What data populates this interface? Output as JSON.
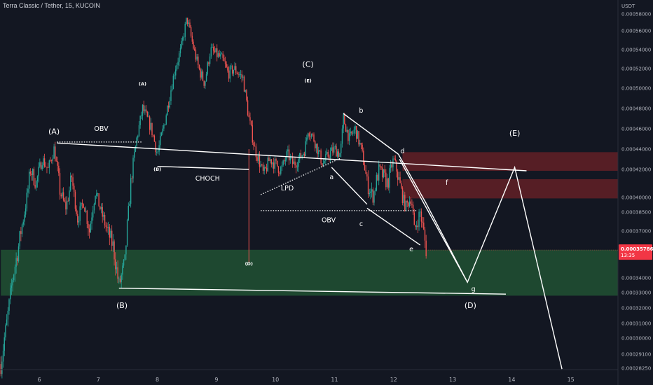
{
  "header": {
    "title": "Terra Classic / Tether, 15, KUCOIN"
  },
  "chart_data": {
    "type": "candlestick",
    "symbol": "Terra Classic / Tether",
    "interval": "15",
    "exchange": "KUCOIN",
    "quote_currency": "USDT",
    "x_ticks": [
      "6",
      "7",
      "8",
      "9",
      "10",
      "11",
      "12",
      "13",
      "14",
      "15"
    ],
    "y_ticks": [
      "0.00058000",
      "0.00056000",
      "0.00054000",
      "0.00052000",
      "0.00050000",
      "0.00048000",
      "0.00046000",
      "0.00044000",
      "0.00042000",
      "0.00040000",
      "0.00038500",
      "0.00037000",
      "0.00034000",
      "0.00033000",
      "0.00032000",
      "0.00031000",
      "0.00030000",
      "0.00029100",
      "0.00028250"
    ],
    "last_price": "0.00035786",
    "countdown": "13:35",
    "path": [
      [
        5.35,
        0.000285
      ],
      [
        5.45,
        0.00031
      ],
      [
        5.55,
        0.00034
      ],
      [
        5.65,
        0.00036
      ],
      [
        5.75,
        0.000385
      ],
      [
        5.85,
        0.00042
      ],
      [
        5.95,
        0.00041
      ],
      [
        6.05,
        0.00043
      ],
      [
        6.15,
        0.00042
      ],
      [
        6.25,
        0.00044
      ],
      [
        6.35,
        0.000405
      ],
      [
        6.45,
        0.00039
      ],
      [
        6.55,
        0.000415
      ],
      [
        6.65,
        0.00038
      ],
      [
        6.75,
        0.000395
      ],
      [
        6.85,
        0.00037
      ],
      [
        6.95,
        0.000405
      ],
      [
        7.05,
        0.000385
      ],
      [
        7.15,
        0.0003705
      ],
      [
        7.25,
        0.0003605
      ],
      [
        7.35,
        0.000335
      ],
      [
        7.45,
        0.00035
      ],
      [
        7.55,
        0.00041
      ],
      [
        7.65,
        0.00045
      ],
      [
        7.75,
        0.00048
      ],
      [
        7.9,
        0.00046
      ],
      [
        8.0,
        0.000435
      ],
      [
        8.1,
        0.00046
      ],
      [
        8.2,
        0.00049
      ],
      [
        8.3,
        0.00052
      ],
      [
        8.4,
        0.00054
      ],
      [
        8.5,
        0.000575
      ],
      [
        8.6,
        0.000545
      ],
      [
        8.7,
        0.00052
      ],
      [
        8.8,
        0.000505
      ],
      [
        8.9,
        0.00054
      ],
      [
        9.0,
        0.000535
      ],
      [
        9.1,
        0.00053
      ],
      [
        9.2,
        0.000515
      ],
      [
        9.3,
        0.00052
      ],
      [
        9.45,
        0.00051
      ],
      [
        9.55,
        0.00047
      ],
      [
        9.65,
        0.00044
      ],
      [
        9.8,
        0.000415
      ],
      [
        9.9,
        0.00043
      ],
      [
        10.0,
        0.000425
      ],
      [
        10.1,
        0.00042
      ],
      [
        10.2,
        0.000435
      ],
      [
        10.3,
        0.000425
      ],
      [
        10.4,
        0.00043
      ],
      [
        10.5,
        0.00044
      ],
      [
        10.55,
        0.00046
      ],
      [
        10.65,
        0.00045
      ],
      [
        10.8,
        0.000425
      ],
      [
        10.9,
        0.000435
      ],
      [
        11.0,
        0.00044
      ],
      [
        11.1,
        0.000435
      ],
      [
        11.15,
        0.00047
      ],
      [
        11.25,
        0.00045
      ],
      [
        11.35,
        0.00046
      ],
      [
        11.45,
        0.00044
      ],
      [
        11.55,
        0.00041
      ],
      [
        11.65,
        0.0004
      ],
      [
        11.75,
        0.00042
      ],
      [
        11.9,
        0.00041
      ],
      [
        12.0,
        0.00043
      ],
      [
        12.1,
        0.00041
      ],
      [
        12.2,
        0.00039
      ],
      [
        12.3,
        0.0004
      ],
      [
        12.35,
        0.00037
      ],
      [
        12.45,
        0.000385
      ],
      [
        12.55,
        0.000358
      ]
    ],
    "wick_spikes": [
      {
        "x": 9.55,
        "low": 0.00035
      }
    ],
    "zones": [
      {
        "name": "demand-zone",
        "y_top": 0.000358,
        "y_bottom": 0.000328,
        "x_from": 5.35,
        "color": "#1f4b32"
      },
      {
        "name": "supply-zone-upper",
        "y_top": 0.000437,
        "y_bottom": 0.000419,
        "x_from": 12.15,
        "color": "#5a1f26"
      },
      {
        "name": "supply-zone-lower",
        "y_top": 0.000413,
        "y_bottom": 0.000399,
        "x_from": 12.15,
        "color": "#5a1f26"
      }
    ],
    "lines": [
      {
        "name": "neckline",
        "points": [
          [
            6.3,
            0.000446
          ],
          [
            14.25,
            0.000419
          ]
        ]
      },
      {
        "name": "choch-top",
        "points": [
          [
            8.0,
            0.000423
          ],
          [
            9.55,
            0.00042
          ]
        ]
      },
      {
        "name": "b-base",
        "points": [
          [
            7.35,
            0.000333
          ],
          [
            13.9,
            0.000329
          ]
        ]
      },
      {
        "name": "wedge-upper",
        "points": [
          [
            11.15,
            0.000475
          ],
          [
            12.08,
            0.000435
          ]
        ]
      },
      {
        "name": "wedge-inner-a",
        "points": [
          [
            10.95,
            0.000422
          ],
          [
            11.55,
            0.000393
          ]
        ]
      },
      {
        "name": "wedge-lower",
        "points": [
          [
            11.55,
            0.000389
          ],
          [
            12.45,
            0.000361
          ]
        ]
      },
      {
        "name": "wedge-right",
        "points": [
          [
            12.08,
            0.000435
          ],
          [
            12.55,
            0.000394
          ]
        ]
      },
      {
        "name": "projection",
        "points": [
          [
            12.1,
            0.00043
          ],
          [
            13.25,
            0.000337
          ],
          [
            14.05,
            0.000422
          ],
          [
            14.85,
            0.000282
          ]
        ]
      },
      {
        "name": "projection-fall",
        "points": [
          [
            12.55,
            0.000394
          ],
          [
            13.25,
            0.000337
          ]
        ]
      }
    ],
    "dotted_lines": [
      {
        "name": "obv-upper",
        "points": [
          [
            6.3,
            0.000447
          ],
          [
            7.75,
            0.000447
          ]
        ]
      },
      {
        "name": "lpd-trend",
        "points": [
          [
            9.75,
            0.000402
          ],
          [
            11.1,
            0.000431
          ]
        ]
      },
      {
        "name": "obv-lower",
        "points": [
          [
            9.75,
            0.0003865
          ],
          [
            12.4,
            0.0003865
          ]
        ]
      }
    ],
    "annotations": [
      {
        "text": "(A)",
        "x": 6.25,
        "y": 0.000455,
        "size": "large"
      },
      {
        "text": "OBV",
        "x": 7.05,
        "y": 0.000458,
        "size": "medium"
      },
      {
        "text": "(A)",
        "x": 7.75,
        "y": 0.000503,
        "size": "small"
      },
      {
        "text": "(B)",
        "x": 8.0,
        "y": 0.000419,
        "size": "small"
      },
      {
        "text": "CHOCH",
        "x": 8.85,
        "y": 0.000412,
        "size": "medium"
      },
      {
        "text": "(B)",
        "x": 7.4,
        "y": 0.00032,
        "size": "large"
      },
      {
        "text": "(D)",
        "x": 9.55,
        "y": 0.000348,
        "size": "small"
      },
      {
        "text": "(C)",
        "x": 10.55,
        "y": 0.000522,
        "size": "large"
      },
      {
        "text": "(E)",
        "x": 10.55,
        "y": 0.000506,
        "size": "small"
      },
      {
        "text": "LPD",
        "x": 10.2,
        "y": 0.000405,
        "size": "medium"
      },
      {
        "text": "a",
        "x": 10.95,
        "y": 0.000413,
        "size": "medium"
      },
      {
        "text": "b",
        "x": 11.45,
        "y": 0.000476,
        "size": "medium"
      },
      {
        "text": "OBV",
        "x": 10.9,
        "y": 0.000377,
        "size": "medium"
      },
      {
        "text": "c",
        "x": 11.45,
        "y": 0.000374,
        "size": "medium"
      },
      {
        "text": "d",
        "x": 12.15,
        "y": 0.000436,
        "size": "medium"
      },
      {
        "text": "e",
        "x": 12.3,
        "y": 0.000357,
        "size": "medium"
      },
      {
        "text": "f",
        "x": 12.9,
        "y": 0.000409,
        "size": "medium"
      },
      {
        "text": "g",
        "x": 13.35,
        "y": 0.000331,
        "size": "medium"
      },
      {
        "text": "(D)",
        "x": 13.3,
        "y": 0.00032,
        "size": "large"
      },
      {
        "text": "(E)",
        "x": 14.05,
        "y": 0.000453,
        "size": "large"
      }
    ]
  },
  "colors": {
    "background": "#131722",
    "bull": "#26a69a",
    "bear": "#ef5350",
    "drawing": "#ffffff",
    "price_tag": "#f23645",
    "axis_text": "#b2b5be"
  }
}
